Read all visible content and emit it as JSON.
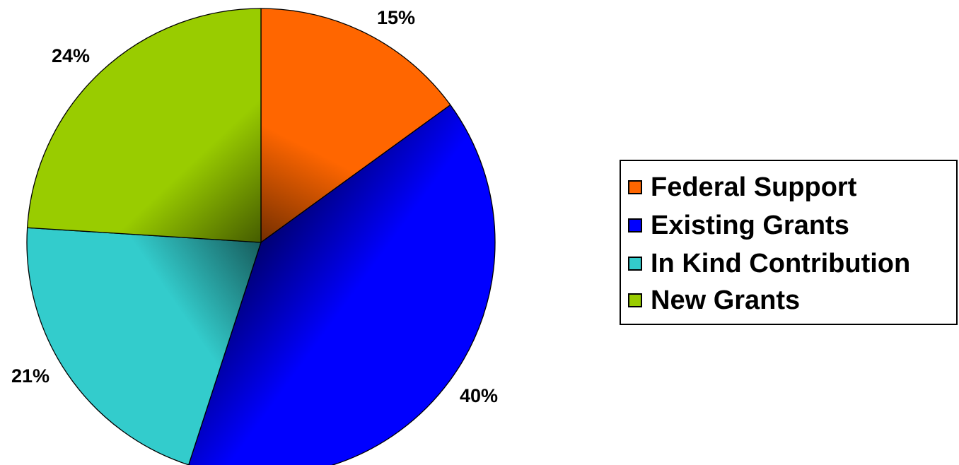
{
  "chart_data": {
    "type": "pie",
    "categories": [
      "Federal Support",
      "Existing Grants",
      "In Kind Contribution",
      "New Grants"
    ],
    "values": [
      15,
      40,
      21,
      24
    ],
    "labels": [
      "15%",
      "40%",
      "21%",
      "24%"
    ],
    "colors": [
      "#ff6600",
      "#0000ff",
      "#33cccc",
      "#99cc00"
    ],
    "start_angle": "12 o'clock, clockwise",
    "legend_position": "right",
    "title": ""
  },
  "legend": {
    "items": [
      {
        "label": "Federal Support",
        "color": "#ff6600"
      },
      {
        "label": "Existing Grants",
        "color": "#0000ff"
      },
      {
        "label": "In Kind Contribution",
        "color": "#33cccc"
      },
      {
        "label": "New Grants",
        "color": "#99cc00"
      }
    ]
  }
}
